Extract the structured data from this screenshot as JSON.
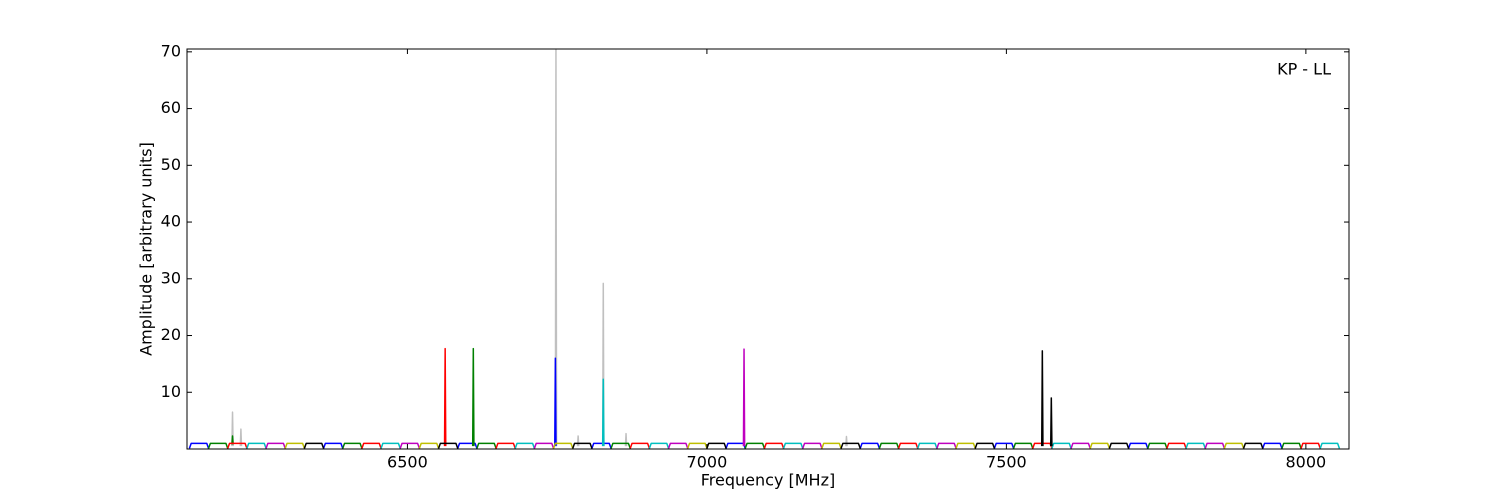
{
  "chart_data": {
    "type": "line",
    "annotation": "KP - LL",
    "xlabel": "Frequency [MHz]",
    "ylabel": "Amplitude [arbitrary units]",
    "xlim": [
      6132,
      8072
    ],
    "xticks": [
      6500,
      7000,
      7500,
      8000
    ],
    "ylim": [
      0,
      70.5
    ],
    "yticks": [
      10,
      20,
      30,
      40,
      50,
      60,
      70
    ],
    "series": [
      {
        "color": "#c0c0c0",
        "x": [
          6747,
          6748,
          6749,
          null,
          6826,
          6827,
          6828,
          null,
          6207,
          6208,
          6209,
          null,
          6221,
          6222,
          6223,
          null,
          6784,
          6785,
          6786,
          null,
          6864,
          6865,
          6866,
          null,
          7232,
          7233,
          7234
        ],
        "values": [
          0.5,
          70.5,
          0.5,
          null,
          0.5,
          29.2,
          0.5,
          null,
          0.5,
          6.5,
          0.5,
          null,
          0.5,
          3.5,
          0.5,
          null,
          0.5,
          2.3,
          0.5,
          null,
          0.5,
          2.7,
          0.5,
          null,
          0.5,
          2.2,
          0.5
        ]
      },
      {
        "color": "#0000ff",
        "x": [
          6136,
          6139,
          6165,
          6168,
          null,
          6360,
          6363,
          6389,
          6392,
          null,
          6584,
          6587,
          6613,
          6616,
          null,
          6808,
          6811,
          6837,
          6840,
          null,
          7032,
          7035,
          7061,
          7064,
          null,
          7256,
          7259,
          7285,
          7288,
          null,
          7480,
          7483,
          7509,
          7512,
          null,
          7704,
          7707,
          7733,
          7736,
          null,
          7928,
          7931,
          7957,
          7960,
          null,
          6746,
          6747,
          6748
        ],
        "values": [
          0.1,
          1,
          1,
          0.1,
          null,
          0.1,
          1,
          1,
          0.1,
          null,
          0.1,
          1,
          1,
          0.1,
          null,
          0.1,
          1,
          1,
          0.1,
          null,
          0.1,
          1,
          1,
          0.1,
          null,
          0.1,
          1,
          1,
          0.1,
          null,
          0.1,
          1,
          1,
          0.1,
          null,
          0.1,
          1,
          1,
          0.1,
          null,
          0.1,
          1,
          1,
          0.1,
          null,
          0.5,
          16,
          0.5
        ]
      },
      {
        "color": "#008000",
        "x": [
          6168,
          6171,
          6197,
          6200,
          null,
          6392,
          6395,
          6421,
          6424,
          null,
          6616,
          6619,
          6645,
          6648,
          null,
          6840,
          6843,
          6869,
          6872,
          null,
          7064,
          7067,
          7093,
          7096,
          null,
          7288,
          7291,
          7317,
          7320,
          null,
          7512,
          7515,
          7541,
          7544,
          null,
          7736,
          7739,
          7765,
          7768,
          null,
          7960,
          7963,
          7989,
          7992,
          null,
          6609,
          6610,
          6611,
          null,
          6207,
          6208,
          6209
        ],
        "values": [
          0.1,
          1,
          1,
          0.1,
          null,
          0.1,
          1,
          1,
          0.1,
          null,
          0.1,
          1,
          1,
          0.1,
          null,
          0.1,
          1,
          1,
          0.1,
          null,
          0.1,
          1,
          1,
          0.1,
          null,
          0.1,
          1,
          1,
          0.1,
          null,
          0.1,
          1,
          1,
          0.1,
          null,
          0.1,
          1,
          1,
          0.1,
          null,
          0.1,
          1,
          1,
          0.1,
          null,
          0.5,
          17.7,
          0.5,
          null,
          0.8,
          2.3,
          0.8
        ]
      },
      {
        "color": "#ff0000",
        "x": [
          6200,
          6203,
          6229,
          6232,
          null,
          6424,
          6427,
          6453,
          6456,
          null,
          6648,
          6651,
          6677,
          6680,
          null,
          6872,
          6875,
          6901,
          6904,
          null,
          7096,
          7099,
          7125,
          7128,
          null,
          7320,
          7323,
          7349,
          7352,
          null,
          7544,
          7547,
          7573,
          7576,
          null,
          7768,
          7771,
          7797,
          7800,
          null,
          7992,
          7995,
          8021,
          8024,
          null,
          6562,
          6563,
          6564
        ],
        "values": [
          0.1,
          1,
          1,
          0.1,
          null,
          0.1,
          1,
          1,
          0.1,
          null,
          0.1,
          1,
          1,
          0.1,
          null,
          0.1,
          1,
          1,
          0.1,
          null,
          0.1,
          1,
          1,
          0.1,
          null,
          0.1,
          1,
          1,
          0.1,
          null,
          0.1,
          1,
          1,
          0.1,
          null,
          0.1,
          1,
          1,
          0.1,
          null,
          0.1,
          1,
          1,
          0.1,
          null,
          0.5,
          17.7,
          0.5
        ]
      },
      {
        "color": "#00bfbf",
        "x": [
          6232,
          6235,
          6261,
          6264,
          null,
          6456,
          6459,
          6485,
          6488,
          null,
          6680,
          6683,
          6709,
          6712,
          null,
          6904,
          6907,
          6933,
          6936,
          null,
          7128,
          7131,
          7157,
          7160,
          null,
          7352,
          7355,
          7381,
          7384,
          null,
          7576,
          7579,
          7605,
          7608,
          null,
          7800,
          7803,
          7829,
          7832,
          null,
          8024,
          8027,
          8053,
          8056,
          null,
          6826,
          6827,
          6828
        ],
        "values": [
          0.1,
          1,
          1,
          0.1,
          null,
          0.1,
          1,
          1,
          0.1,
          null,
          0.1,
          1,
          1,
          0.1,
          null,
          0.1,
          1,
          1,
          0.1,
          null,
          0.1,
          1,
          1,
          0.1,
          null,
          0.1,
          1,
          1,
          0.1,
          null,
          0.1,
          1,
          1,
          0.1,
          null,
          0.1,
          1,
          1,
          0.1,
          null,
          0.1,
          1,
          1,
          0.1,
          null,
          0.5,
          12.3,
          0.5
        ]
      },
      {
        "color": "#bf00bf",
        "x": [
          6264,
          6267,
          6293,
          6296,
          null,
          6488,
          6491,
          6517,
          6520,
          null,
          6712,
          6715,
          6741,
          6744,
          null,
          6936,
          6939,
          6965,
          6968,
          null,
          7160,
          7163,
          7189,
          7192,
          null,
          7384,
          7387,
          7413,
          7416,
          null,
          7608,
          7611,
          7637,
          7640,
          null,
          7832,
          7835,
          7861,
          7864,
          null,
          7061,
          7062,
          7063
        ],
        "values": [
          0.1,
          1,
          1,
          0.1,
          null,
          0.1,
          1,
          1,
          0.1,
          null,
          0.1,
          1,
          1,
          0.1,
          null,
          0.1,
          1,
          1,
          0.1,
          null,
          0.1,
          1,
          1,
          0.1,
          null,
          0.1,
          1,
          1,
          0.1,
          null,
          0.1,
          1,
          1,
          0.1,
          null,
          0.1,
          1,
          1,
          0.1,
          null,
          0.5,
          17.6,
          0.5
        ]
      },
      {
        "color": "#bfbf00",
        "x": [
          6296,
          6299,
          6325,
          6328,
          null,
          6520,
          6523,
          6549,
          6552,
          null,
          6744,
          6747,
          6773,
          6776,
          null,
          6968,
          6971,
          6997,
          7000,
          null,
          7192,
          7195,
          7221,
          7224,
          null,
          7416,
          7419,
          7445,
          7448,
          null,
          7640,
          7643,
          7669,
          7672,
          null,
          7864,
          7867,
          7893,
          7896
        ],
        "values": [
          0.1,
          1,
          1,
          0.1,
          null,
          0.1,
          1,
          1,
          0.1,
          null,
          0.1,
          1,
          1,
          0.1,
          null,
          0.1,
          1,
          1,
          0.1,
          null,
          0.1,
          1,
          1,
          0.1,
          null,
          0.1,
          1,
          1,
          0.1,
          null,
          0.1,
          1,
          1,
          0.1,
          null,
          0.1,
          1,
          1,
          0.1
        ]
      },
      {
        "color": "#000000",
        "x": [
          6328,
          6331,
          6357,
          6360,
          null,
          6552,
          6555,
          6581,
          6584,
          null,
          6776,
          6779,
          6805,
          6808,
          null,
          7000,
          7003,
          7029,
          7032,
          null,
          7224,
          7227,
          7253,
          7256,
          null,
          7448,
          7451,
          7477,
          7480,
          null,
          7672,
          7675,
          7701,
          7704,
          null,
          7896,
          7899,
          7925,
          7928,
          null,
          7559,
          7560,
          7561,
          null,
          7574,
          7575,
          7576
        ],
        "values": [
          0.1,
          1,
          1,
          0.1,
          null,
          0.1,
          1,
          1,
          0.1,
          null,
          0.1,
          1,
          1,
          0.1,
          null,
          0.1,
          1,
          1,
          0.1,
          null,
          0.1,
          1,
          1,
          0.1,
          null,
          0.1,
          1,
          1,
          0.1,
          null,
          0.1,
          1,
          1,
          0.1,
          null,
          0.1,
          1,
          1,
          0.1,
          null,
          0.5,
          17.3,
          0.5,
          null,
          0.5,
          9,
          0.5
        ]
      }
    ]
  }
}
